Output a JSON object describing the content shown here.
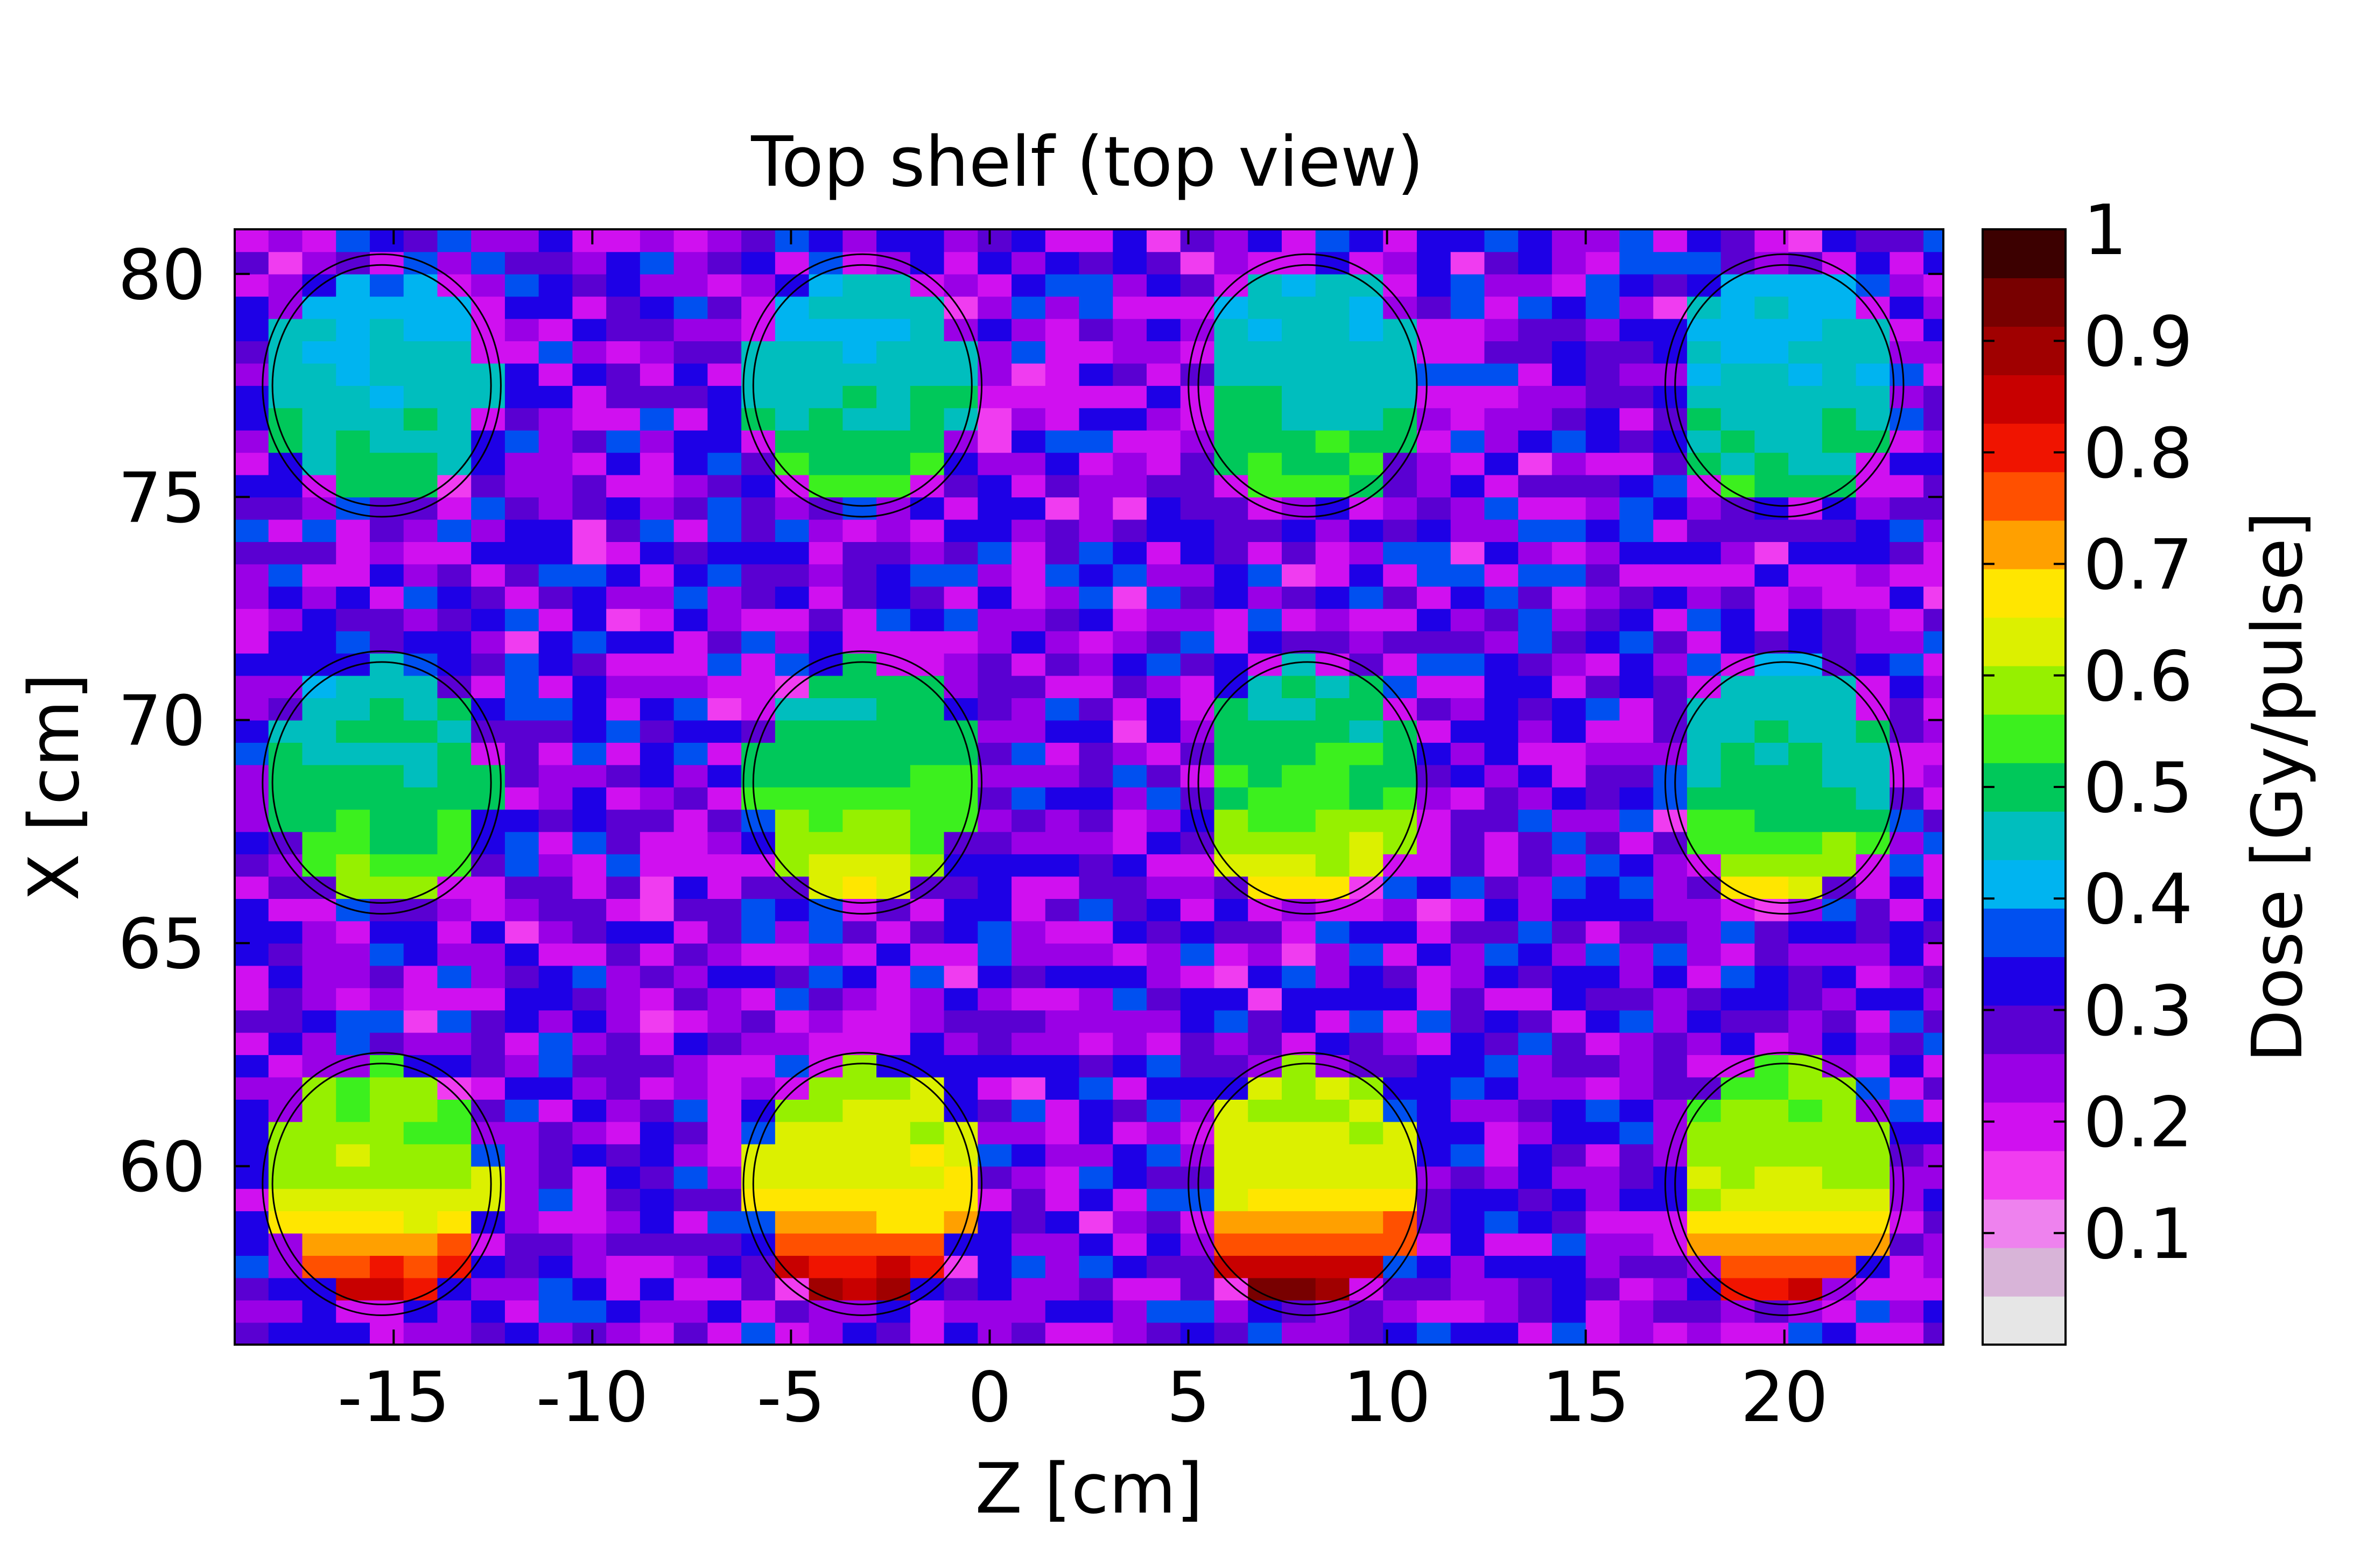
{
  "chart_data": {
    "type": "heatmap",
    "title": "Top shelf (top view)",
    "xlabel": "Z [cm]",
    "ylabel": "X [cm]",
    "xlim": [
      -19,
      24
    ],
    "ylim": [
      56,
      81
    ],
    "xticks": [
      -15,
      -10,
      -5,
      0,
      5,
      10,
      15,
      20
    ],
    "xtick_labels": [
      "-15",
      "-10",
      "-5",
      "0",
      "5",
      "10",
      "15",
      "20"
    ],
    "yticks": [
      60,
      65,
      70,
      75,
      80
    ],
    "ytick_labels": [
      "60",
      "65",
      "70",
      "75",
      "80"
    ],
    "grid": false,
    "colorbar": {
      "label": "Dose [Gy/pulse]",
      "range": [
        0,
        1
      ],
      "ticks": [
        0.1,
        0.2,
        0.3,
        0.4,
        0.5,
        0.6,
        0.7,
        0.8,
        0.9,
        1
      ],
      "tick_labels": [
        "0.1",
        "0.2",
        "0.3",
        "0.4",
        "0.5",
        "0.6",
        "0.7",
        "0.8",
        "0.9",
        "1"
      ],
      "colors": [
        "#e6e6e6",
        "#d8b4d8",
        "#ee82ee",
        "#f03cf0",
        "#d010f0",
        "#9a00e6",
        "#5a00d2",
        "#1e00e6",
        "#0050f0",
        "#00b4f0",
        "#00bebe",
        "#00c85a",
        "#3cf01e",
        "#96f000",
        "#dcf000",
        "#ffe600",
        "#ffa000",
        "#ff5000",
        "#f01400",
        "#c80000",
        "#a00000",
        "#780000",
        "#3c0000"
      ]
    },
    "cell_size_cm": [
      0.85,
      0.5
    ],
    "background_dose": 0.27,
    "dishes": [
      {
        "z": -15.3,
        "x": 77.5,
        "center_dose": 0.45,
        "bottom_dose": 0.5
      },
      {
        "z": -3.2,
        "x": 77.5,
        "center_dose": 0.47,
        "bottom_dose": 0.55
      },
      {
        "z": 8.0,
        "x": 77.5,
        "center_dose": 0.47,
        "bottom_dose": 0.55
      },
      {
        "z": 20.0,
        "x": 77.5,
        "center_dose": 0.45,
        "bottom_dose": 0.52
      },
      {
        "z": -15.3,
        "x": 68.6,
        "center_dose": 0.49,
        "bottom_dose": 0.58
      },
      {
        "z": -3.2,
        "x": 68.6,
        "center_dose": 0.52,
        "bottom_dose": 0.66
      },
      {
        "z": 8.0,
        "x": 68.6,
        "center_dose": 0.52,
        "bottom_dose": 0.68
      },
      {
        "z": 20.0,
        "x": 68.6,
        "center_dose": 0.48,
        "bottom_dose": 0.66
      },
      {
        "z": -15.3,
        "x": 59.6,
        "center_dose": 0.6,
        "bottom_dose": 0.88
      },
      {
        "z": -3.2,
        "x": 59.6,
        "center_dose": 0.64,
        "bottom_dose": 0.92
      },
      {
        "z": 8.0,
        "x": 59.6,
        "center_dose": 0.64,
        "bottom_dose": 0.95
      },
      {
        "z": 20.0,
        "x": 59.6,
        "center_dose": 0.6,
        "bottom_dose": 0.85
      }
    ],
    "dish_radius_cm": [
      2.75,
      2.7
    ]
  }
}
